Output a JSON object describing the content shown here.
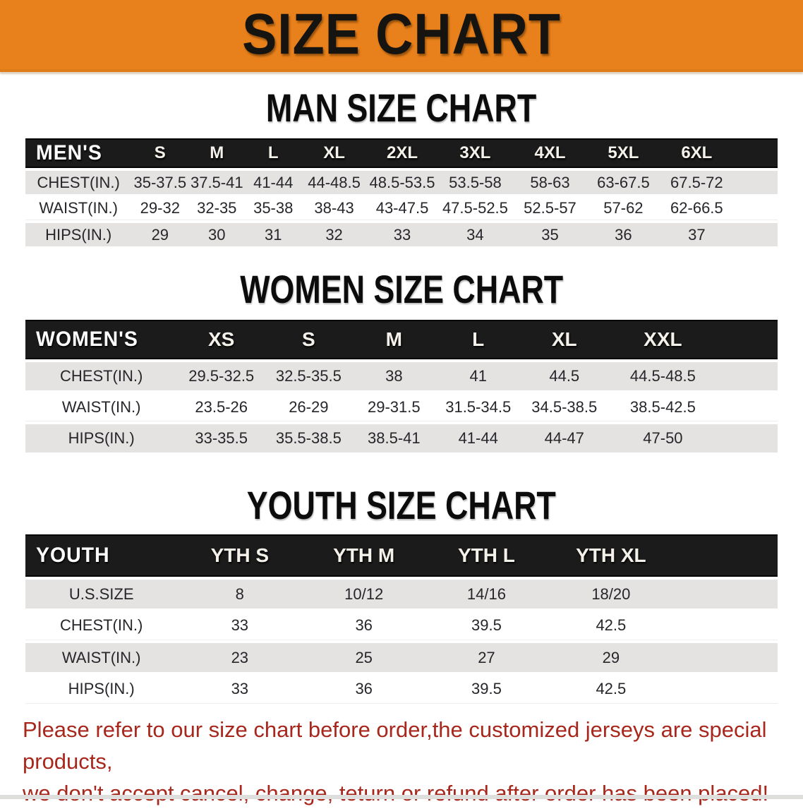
{
  "banner": {
    "title": "SIZE CHART"
  },
  "sections": [
    {
      "id": "men",
      "heading": "MAN SIZE CHART",
      "table": {
        "header_label": "MEN'S",
        "columns": [
          "S",
          "M",
          "L",
          "XL",
          "2XL",
          "3XL",
          "4XL",
          "5XL",
          "6XL"
        ],
        "rows": [
          {
            "label": "CHEST(IN.)",
            "values": [
              "35-37.5",
              "37.5-41",
              "41-44",
              "44-48.5",
              "48.5-53.5",
              "53.5-58",
              "58-63",
              "63-67.5",
              "67.5-72"
            ]
          },
          {
            "label": "WAIST(IN.)",
            "values": [
              "29-32",
              "32-35",
              "35-38",
              "38-43",
              "43-47.5",
              "47.5-52.5",
              "52.5-57",
              "57-62",
              "62-66.5"
            ]
          },
          {
            "label": "HIPS(IN.)",
            "values": [
              "29",
              "30",
              "31",
              "32",
              "33",
              "34",
              "35",
              "36",
              "37"
            ]
          }
        ]
      }
    },
    {
      "id": "women",
      "heading": "WOMEN SIZE CHART",
      "table": {
        "header_label": "WOMEN'S",
        "columns": [
          "XS",
          "S",
          "M",
          "L",
          "XL",
          "XXL"
        ],
        "rows": [
          {
            "label": "CHEST(IN.)",
            "values": [
              "29.5-32.5",
              "32.5-35.5",
              "38",
              "41",
              "44.5",
              "44.5-48.5"
            ]
          },
          {
            "label": "WAIST(IN.)",
            "values": [
              "23.5-26",
              "26-29",
              "29-31.5",
              "31.5-34.5",
              "34.5-38.5",
              "38.5-42.5"
            ]
          },
          {
            "label": "HIPS(IN.)",
            "values": [
              "33-35.5",
              "35.5-38.5",
              "38.5-41",
              "41-44",
              "44-47",
              "47-50"
            ]
          }
        ]
      }
    },
    {
      "id": "youth",
      "heading": "YOUTH SIZE CHART",
      "table": {
        "header_label": "YOUTH",
        "columns": [
          "YTH S",
          "YTH M",
          "YTH L",
          "YTH XL"
        ],
        "rows": [
          {
            "label": "U.S.SIZE",
            "values": [
              "8",
              "10/12",
              "14/16",
              "18/20"
            ]
          },
          {
            "label": "CHEST(IN.)",
            "values": [
              "33",
              "36",
              "39.5",
              "42.5"
            ]
          },
          {
            "label": "WAIST(IN.)",
            "values": [
              "23",
              "25",
              "27",
              "29"
            ]
          },
          {
            "label": "HIPS(IN.)",
            "values": [
              "33",
              "36",
              "39.5",
              "42.5"
            ]
          }
        ]
      }
    }
  ],
  "footer": {
    "lines": [
      "Please refer to our size chart before order,the customized jerseys are special products,",
      "we don't accept cancel, change, teturn or refund after order has been placed!"
    ]
  },
  "colors": {
    "banner_bg": "#E8801B",
    "banner_text": "#161410",
    "header_bar_bg": "#1B1B1B",
    "header_bar_text": "#F4F1EA",
    "row_stripe": "#E4E3E1",
    "footer_text": "#A8271D"
  }
}
